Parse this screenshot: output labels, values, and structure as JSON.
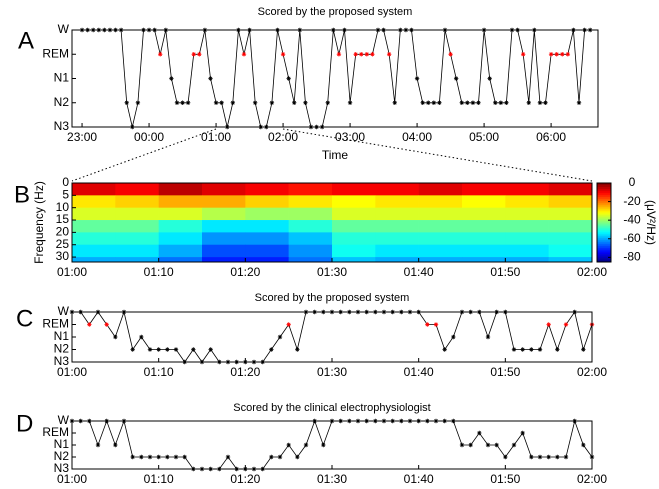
{
  "chart_data": [
    {
      "type": "line",
      "annotation": "A",
      "title": "Scored by the proposed system",
      "xlabel": "Time",
      "color": "#000000",
      "highlight": {
        "value": 4,
        "color": "#ff0000"
      },
      "x": [
        0,
        5,
        10,
        15,
        20,
        25,
        30,
        35,
        40,
        45,
        50,
        55,
        60,
        65,
        70,
        75,
        80,
        85,
        90,
        95,
        100,
        105,
        110,
        115,
        120,
        125,
        130,
        135,
        140,
        145,
        150,
        155,
        160,
        165,
        170,
        175,
        180,
        185,
        190,
        195,
        200,
        205,
        210,
        215,
        220,
        225,
        230,
        235,
        240,
        245,
        250,
        255,
        260,
        265,
        270,
        275,
        280,
        285,
        290,
        295,
        300,
        305,
        310,
        315,
        320,
        325,
        330,
        335,
        340,
        345,
        350,
        355,
        360,
        365,
        370,
        375,
        380,
        385,
        390,
        395,
        400,
        405,
        410,
        415,
        420,
        425,
        430,
        435,
        440,
        445,
        450,
        455
      ],
      "values": [
        5,
        5,
        5,
        5,
        5,
        5,
        5,
        5,
        2,
        1,
        2,
        5,
        5,
        5,
        4,
        5,
        3,
        2,
        2,
        2,
        4,
        4,
        5,
        3,
        2,
        2,
        1,
        2,
        5,
        4,
        5,
        2,
        1,
        1,
        2,
        5,
        4,
        3,
        2,
        5,
        2,
        1,
        1,
        1,
        2,
        5,
        4,
        5,
        2,
        4,
        4,
        4,
        4,
        5,
        5,
        4,
        2,
        5,
        5,
        5,
        3,
        2,
        2,
        2,
        2,
        5,
        4,
        3,
        2,
        2,
        2,
        2,
        5,
        3,
        2,
        2,
        2,
        5,
        5,
        4,
        2,
        5,
        2,
        2,
        4,
        4,
        4,
        4,
        5,
        2,
        5,
        5
      ],
      "xlim": [
        -9,
        462
      ],
      "ylim": [
        1,
        5
      ],
      "xticks": [
        {
          "value": 0,
          "label": "23:00"
        },
        {
          "value": 60,
          "label": "00:00"
        },
        {
          "value": 120,
          "label": "01:00"
        },
        {
          "value": 180,
          "label": "02:00"
        },
        {
          "value": 240,
          "label": "03:00"
        },
        {
          "value": 300,
          "label": "04:00"
        },
        {
          "value": 360,
          "label": "05:00"
        },
        {
          "value": 420,
          "label": "06:00"
        }
      ],
      "yticks": [
        {
          "value": 5,
          "label": "W"
        },
        {
          "value": 4,
          "label": "REM"
        },
        {
          "value": 3,
          "label": "N1"
        },
        {
          "value": 2,
          "label": "N2"
        },
        {
          "value": 1,
          "label": "N3"
        }
      ]
    },
    {
      "type": "heatmap",
      "annotation": "B",
      "ylabel": "Frequency (Hz)",
      "colorbar_label": "(μV²/Hz)",
      "colormap": "jet",
      "x": [
        0,
        5,
        10,
        15,
        20,
        25,
        30,
        35,
        40,
        45,
        50,
        55
      ],
      "y": [
        0,
        5,
        10,
        15,
        20,
        25,
        30
      ],
      "z": [
        [
          -8,
          -10,
          -5,
          -8,
          -10,
          -12,
          -10,
          -10,
          -8,
          -10,
          -10,
          -8
        ],
        [
          -30,
          -28,
          -25,
          -25,
          -28,
          -30,
          -32,
          -30,
          -30,
          -32,
          -30,
          -28
        ],
        [
          -35,
          -35,
          -35,
          -38,
          -40,
          -40,
          -35,
          -35,
          -35,
          -35,
          -35,
          -35
        ],
        [
          -45,
          -45,
          -50,
          -55,
          -55,
          -50,
          -45,
          -45,
          -45,
          -45,
          -45,
          -45
        ],
        [
          -50,
          -50,
          -55,
          -62,
          -62,
          -58,
          -50,
          -50,
          -50,
          -50,
          -50,
          -50
        ],
        [
          -55,
          -55,
          -60,
          -68,
          -68,
          -62,
          -52,
          -55,
          -55,
          -55,
          -55,
          -52
        ],
        [
          -60,
          -60,
          -65,
          -72,
          -72,
          -65,
          -58,
          -60,
          -60,
          -60,
          -60,
          -58
        ]
      ],
      "xlim": [
        0,
        60
      ],
      "ylim": [
        0,
        32
      ],
      "clim": [
        -85,
        0
      ],
      "xticks": [
        {
          "value": 0,
          "label": "01:00"
        },
        {
          "value": 10,
          "label": "01:10"
        },
        {
          "value": 20,
          "label": "01:20"
        },
        {
          "value": 30,
          "label": "01:30"
        },
        {
          "value": 40,
          "label": "01:40"
        },
        {
          "value": 50,
          "label": "01:50"
        },
        {
          "value": 60,
          "label": "02:00"
        }
      ],
      "yticks": [
        0,
        5,
        10,
        15,
        20,
        25,
        30
      ],
      "cticks": [
        0,
        -20,
        -40,
        -60,
        -80
      ]
    },
    {
      "type": "line",
      "annotation": "C",
      "title": "Scored by the proposed system",
      "color": "#000000",
      "highlight": {
        "value": 4,
        "color": "#ff0000"
      },
      "x": [
        0,
        1,
        2,
        3,
        4,
        5,
        6,
        7,
        8,
        9,
        10,
        11,
        12,
        13,
        14,
        15,
        16,
        17,
        18,
        19,
        20,
        21,
        22,
        23,
        24,
        25,
        26,
        27,
        28,
        29,
        30,
        31,
        32,
        33,
        34,
        35,
        36,
        37,
        38,
        39,
        40,
        41,
        42,
        43,
        44,
        45,
        46,
        47,
        48,
        49,
        50,
        51,
        52,
        53,
        54,
        55,
        56,
        57,
        58,
        59,
        60
      ],
      "values": [
        5,
        5,
        4,
        5,
        4,
        3,
        5,
        2,
        3,
        2,
        2,
        2,
        2,
        1,
        2,
        1,
        2,
        1,
        1,
        1,
        1,
        1,
        1,
        2,
        3,
        4,
        2,
        5,
        5,
        5,
        5,
        5,
        5,
        5,
        5,
        5,
        5,
        5,
        5,
        5,
        5,
        4,
        4,
        2,
        3,
        5,
        5,
        5,
        3,
        5,
        5,
        2,
        2,
        2,
        2,
        4,
        2,
        4,
        5,
        2,
        4
      ],
      "xlim": [
        0,
        60
      ],
      "ylim": [
        1,
        5
      ],
      "xticks": [
        {
          "value": 0,
          "label": "01:00"
        },
        {
          "value": 10,
          "label": "01:10"
        },
        {
          "value": 20,
          "label": "01:20"
        },
        {
          "value": 30,
          "label": "01:30"
        },
        {
          "value": 40,
          "label": "01:40"
        },
        {
          "value": 50,
          "label": "01:50"
        },
        {
          "value": 60,
          "label": "02:00"
        }
      ],
      "yticks": [
        {
          "value": 5,
          "label": "W"
        },
        {
          "value": 4,
          "label": "REM"
        },
        {
          "value": 3,
          "label": "N1"
        },
        {
          "value": 2,
          "label": "N2"
        },
        {
          "value": 1,
          "label": "N3"
        }
      ]
    },
    {
      "type": "line",
      "annotation": "D",
      "title": "Scored by the clinical electrophysiologist",
      "color": "#000000",
      "x": [
        0,
        1,
        2,
        3,
        4,
        5,
        6,
        7,
        8,
        9,
        10,
        11,
        12,
        13,
        14,
        15,
        16,
        17,
        18,
        19,
        20,
        21,
        22,
        23,
        24,
        25,
        26,
        27,
        28,
        29,
        30,
        31,
        32,
        33,
        34,
        35,
        36,
        37,
        38,
        39,
        40,
        41,
        42,
        43,
        44,
        45,
        46,
        47,
        48,
        49,
        50,
        51,
        52,
        53,
        54,
        55,
        56,
        57,
        58,
        59,
        60
      ],
      "values": [
        5,
        5,
        5,
        3,
        5,
        3,
        5,
        2,
        2,
        2,
        2,
        2,
        2,
        2,
        1,
        1,
        1,
        1,
        2,
        1,
        1,
        1,
        1,
        2,
        2,
        3,
        2,
        3,
        5,
        3,
        5,
        5,
        5,
        5,
        5,
        5,
        5,
        5,
        5,
        5,
        5,
        5,
        5,
        5,
        5,
        3,
        3,
        4,
        3,
        3,
        2,
        3,
        4,
        2,
        2,
        2,
        2,
        2,
        5,
        3,
        2
      ],
      "xlim": [
        0,
        60
      ],
      "ylim": [
        1,
        5
      ],
      "xticks": [
        {
          "value": 0,
          "label": "01:00"
        },
        {
          "value": 10,
          "label": "01:10"
        },
        {
          "value": 20,
          "label": "01:20"
        },
        {
          "value": 30,
          "label": "01:30"
        },
        {
          "value": 40,
          "label": "01:40"
        },
        {
          "value": 50,
          "label": "01:50"
        },
        {
          "value": 60,
          "label": "02:00"
        }
      ],
      "yticks": [
        {
          "value": 5,
          "label": "W"
        },
        {
          "value": 4,
          "label": "REM"
        },
        {
          "value": 3,
          "label": "N1"
        },
        {
          "value": 2,
          "label": "N2"
        },
        {
          "value": 1,
          "label": "N3"
        }
      ]
    }
  ]
}
